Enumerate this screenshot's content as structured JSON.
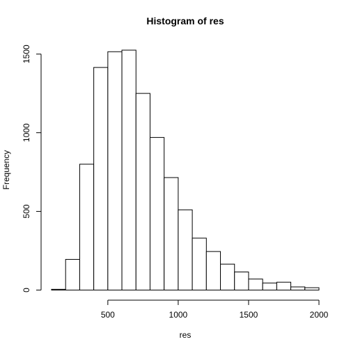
{
  "chart_data": {
    "type": "bar",
    "title": "Histogram of res",
    "xlabel": "res",
    "ylabel": "Frequency",
    "bin_width": 100,
    "bins": [
      {
        "start": 100,
        "end": 200,
        "count": 5
      },
      {
        "start": 200,
        "end": 300,
        "count": 195
      },
      {
        "start": 300,
        "end": 400,
        "count": 800
      },
      {
        "start": 400,
        "end": 500,
        "count": 1415
      },
      {
        "start": 500,
        "end": 600,
        "count": 1515
      },
      {
        "start": 600,
        "end": 700,
        "count": 1525
      },
      {
        "start": 700,
        "end": 800,
        "count": 1250
      },
      {
        "start": 800,
        "end": 900,
        "count": 970
      },
      {
        "start": 900,
        "end": 1000,
        "count": 715
      },
      {
        "start": 1000,
        "end": 1100,
        "count": 510
      },
      {
        "start": 1100,
        "end": 1200,
        "count": 330
      },
      {
        "start": 1200,
        "end": 1300,
        "count": 245
      },
      {
        "start": 1300,
        "end": 1400,
        "count": 165
      },
      {
        "start": 1400,
        "end": 1500,
        "count": 115
      },
      {
        "start": 1500,
        "end": 1600,
        "count": 70
      },
      {
        "start": 1600,
        "end": 1700,
        "count": 45
      },
      {
        "start": 1700,
        "end": 1800,
        "count": 50
      },
      {
        "start": 1800,
        "end": 1900,
        "count": 20
      },
      {
        "start": 1900,
        "end": 2000,
        "count": 15
      }
    ],
    "xlim": [
      100,
      2000
    ],
    "ylim": [
      0,
      1525
    ],
    "xticks": [
      500,
      1000,
      1500,
      2000
    ],
    "yticks": [
      0,
      500,
      1000,
      1500
    ],
    "grid": false,
    "legend": "none"
  }
}
